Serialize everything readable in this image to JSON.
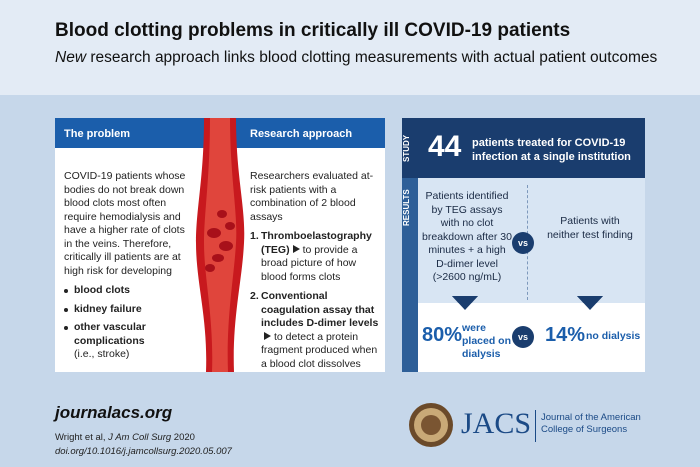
{
  "header": {
    "title": "Blood clotting problems in critically ill COVID-19 patients",
    "subtitle": {
      "emphasis": "New",
      "text": "research approach links blood clotting measurements with actual patient outcomes"
    }
  },
  "problem": {
    "heading": "The problem",
    "text": "COVID-19 patients whose bodies do not break down blood clots most often require hemodialysis and have a higher rate of clots in the veins. Therefore, critically ill patients are at high risk for developing",
    "bullets": [
      {
        "text": "blood clots"
      },
      {
        "text": "kidney failure"
      },
      {
        "text": "other vascular complications",
        "note": "(i.e., stroke)"
      }
    ]
  },
  "approach": {
    "heading": "Research approach",
    "intro": "Researchers evaluated at-risk patients with a combination of 2 blood assays",
    "items": [
      {
        "number": "1.",
        "bold": "Thromboelastography (TEG)",
        "text": "to provide a broad picture of how blood forms clots"
      },
      {
        "number": "2.",
        "bold": "Conventional coagulation assay that includes D-dimer levels",
        "text": "to detect a protein fragment produced when a blood clot dissolves"
      }
    ]
  },
  "study": {
    "label": "STUDY",
    "count": "44",
    "text": "patients treated for COVID-19 infection at a single institution"
  },
  "results": {
    "label": "RESULTS",
    "left": "Patients identified by TEG assays with no clot breakdown after 30 minutes + a high D-dimer level (>2600 ng/mL)",
    "vs": "vs",
    "right": "Patients with neither test finding",
    "left_outcome": {
      "value": "80%",
      "text": "were placed on dialysis"
    },
    "right_outcome": {
      "value": "14%",
      "text": "no dialysis"
    }
  },
  "footer": {
    "site": "journalacs.org",
    "citation": {
      "authors": "Wright et al,",
      "journal": "J Am Coll Surg",
      "year": "2020"
    },
    "doi": "doi.org/10.1016/j.jamcollsurg.2020.05.007",
    "logo": "JACS",
    "journal_name": "Journal of the American College of Surgeons"
  }
}
